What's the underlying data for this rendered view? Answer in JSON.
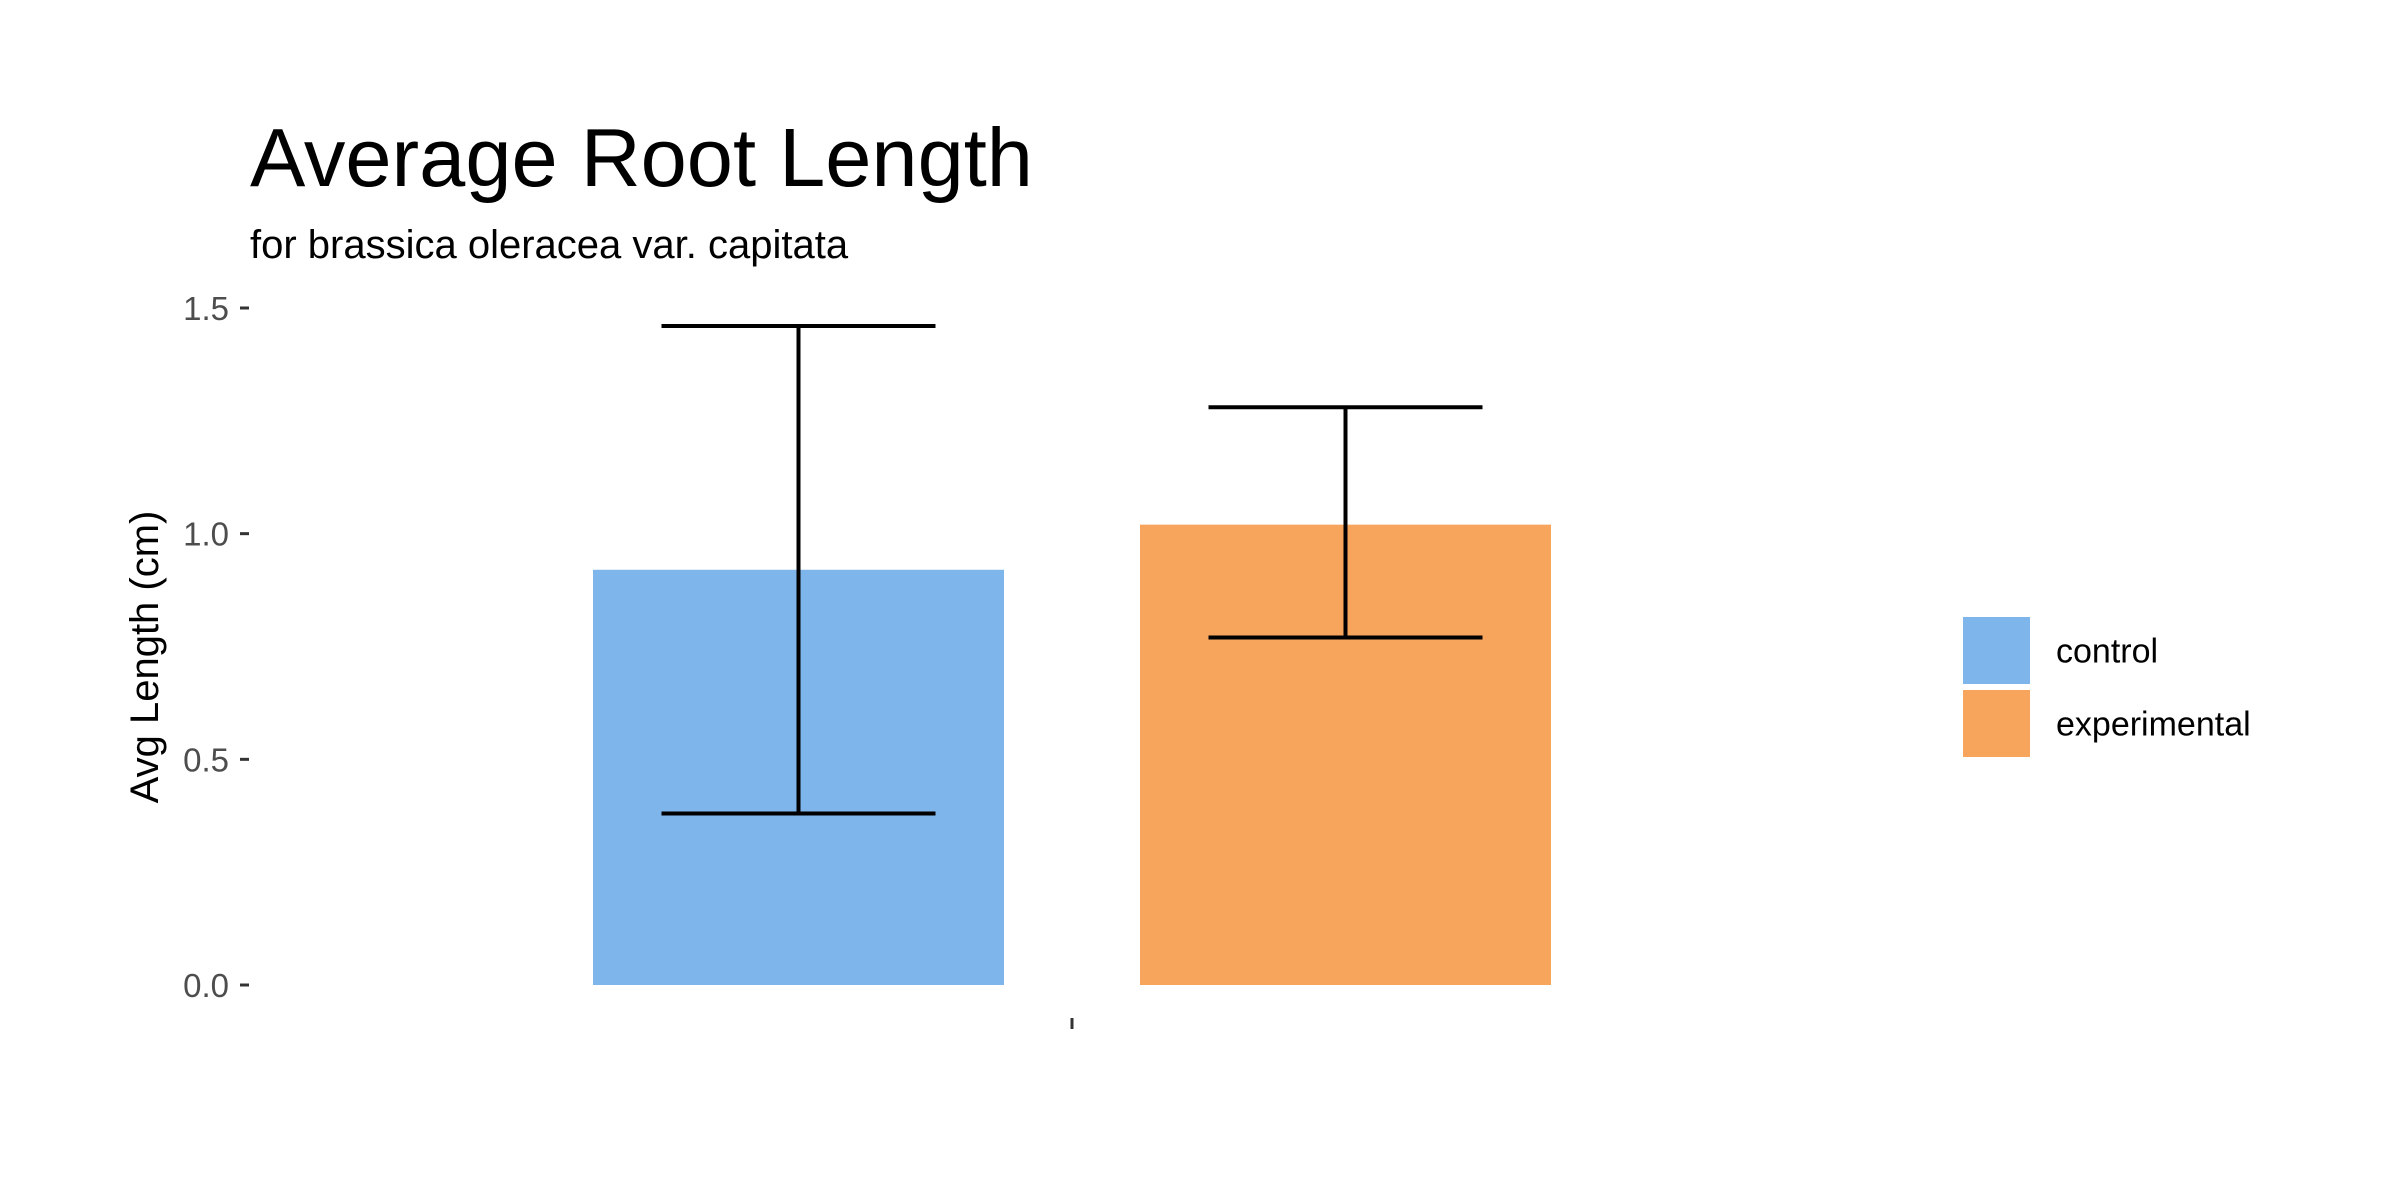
{
  "chart_data": {
    "type": "bar",
    "title": "Average Root Length",
    "subtitle": "for  brassica oleracea var. capitata",
    "xlabel": "",
    "ylabel": "Avg Length (cm)",
    "categories": [
      ""
    ],
    "ylim": [
      0,
      1.5
    ],
    "yticks": [
      "0.0",
      "0.5",
      "1.0",
      "1.5"
    ],
    "grid": false,
    "legend_position": "right",
    "series": [
      {
        "name": "control",
        "color": "#7EB5EB",
        "values": [
          0.92
        ],
        "error_low": [
          0.38
        ],
        "error_high": [
          1.46
        ]
      },
      {
        "name": "experimental",
        "color": "#F7A45C",
        "values": [
          1.02
        ],
        "error_low": [
          0.77
        ],
        "error_high": [
          1.28
        ]
      }
    ]
  }
}
